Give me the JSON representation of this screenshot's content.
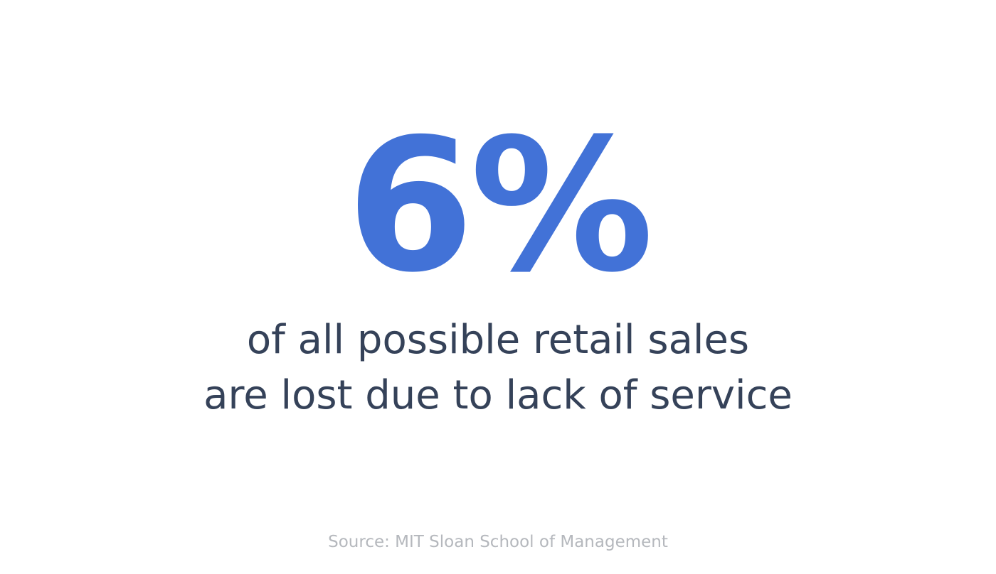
{
  "stat": {
    "value": "6%",
    "description": [
      "of all possible retail sales",
      "are lost due to lack of service"
    ]
  },
  "source": "Source: MIT Sloan School of Management"
}
